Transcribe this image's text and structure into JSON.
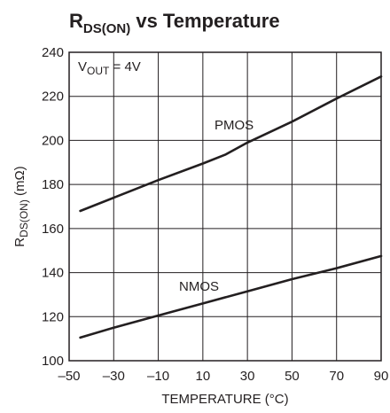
{
  "chart_data": {
    "type": "line",
    "title_main": "R",
    "title_sub": "DS(ON)",
    "title_rest": " vs Temperature",
    "xlabel": "TEMPERATURE (°C)",
    "ylabel_main": "R",
    "ylabel_sub": "DS(ON)",
    "ylabel_rest": " (mΩ)",
    "xlim": [
      -50,
      90
    ],
    "ylim": [
      100,
      240
    ],
    "x_ticks": [
      -50,
      -30,
      -10,
      10,
      30,
      50,
      70,
      90
    ],
    "x_tick_labels": [
      "–50",
      "–30",
      "–10",
      "10",
      "30",
      "50",
      "70",
      "90"
    ],
    "y_ticks": [
      100,
      120,
      140,
      160,
      180,
      200,
      220,
      240
    ],
    "y_tick_labels": [
      "100",
      "120",
      "140",
      "160",
      "180",
      "200",
      "220",
      "240"
    ],
    "grid": true,
    "legend": "none",
    "annotation": {
      "main": "V",
      "sub": "OUT",
      "rest": " = 4V"
    },
    "series": [
      {
        "name": "PMOS",
        "x": [
          -45,
          -30,
          -10,
          10,
          20,
          30,
          50,
          70,
          90
        ],
        "y": [
          168,
          174,
          182,
          189.5,
          193.5,
          199,
          208.5,
          219,
          229
        ]
      },
      {
        "name": "NMOS",
        "x": [
          -45,
          -30,
          -10,
          10,
          30,
          50,
          70,
          90
        ],
        "y": [
          110.5,
          115,
          120.5,
          126,
          131.5,
          137,
          142,
          147.5
        ]
      }
    ]
  }
}
